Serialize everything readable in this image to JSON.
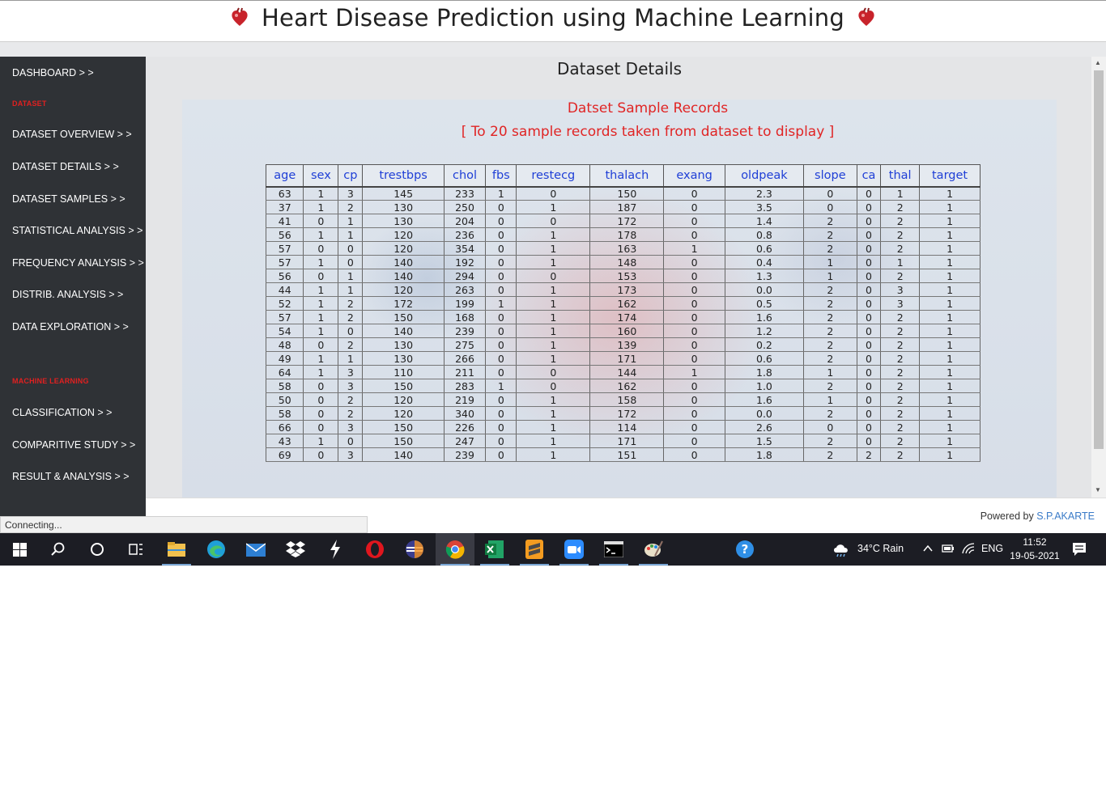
{
  "header": {
    "title": "Heart Disease Prediction using Machine Learning"
  },
  "sidebar": {
    "items": [
      {
        "label": "DASHBOARD > >"
      },
      {
        "label": "DATASET",
        "section": true
      },
      {
        "label": "DATASET OVERVIEW > >"
      },
      {
        "label": "DATASET DETAILS > >"
      },
      {
        "label": "DATASET SAMPLES > >"
      },
      {
        "label": "STATISTICAL ANALYSIS > >"
      },
      {
        "label": "FREQUENCY ANALYSIS > >"
      },
      {
        "label": "DISTRIB. ANALYSIS > >"
      },
      {
        "label": "DATA EXPLORATION > >"
      },
      {
        "label": "MACHINE LEARNING",
        "section": true
      },
      {
        "label": "CLASSIFICATION > >"
      },
      {
        "label": "COMPARITIVE STUDY > >"
      },
      {
        "label": "RESULT & ANALYSIS > >"
      }
    ]
  },
  "main": {
    "title": "Dataset Details",
    "panel_title": "Datset Sample Records",
    "panel_subtitle": "[ To 20 sample records taken from dataset to display ]",
    "table": {
      "columns": [
        "age",
        "sex",
        "cp",
        "trestbps",
        "chol",
        "fbs",
        "restecg",
        "thalach",
        "exang",
        "oldpeak",
        "slope",
        "ca",
        "thal",
        "target"
      ],
      "rows": [
        [
          "63",
          "1",
          "3",
          "145",
          "233",
          "1",
          "0",
          "150",
          "0",
          "2.3",
          "0",
          "0",
          "1",
          "1"
        ],
        [
          "37",
          "1",
          "2",
          "130",
          "250",
          "0",
          "1",
          "187",
          "0",
          "3.5",
          "0",
          "0",
          "2",
          "1"
        ],
        [
          "41",
          "0",
          "1",
          "130",
          "204",
          "0",
          "0",
          "172",
          "0",
          "1.4",
          "2",
          "0",
          "2",
          "1"
        ],
        [
          "56",
          "1",
          "1",
          "120",
          "236",
          "0",
          "1",
          "178",
          "0",
          "0.8",
          "2",
          "0",
          "2",
          "1"
        ],
        [
          "57",
          "0",
          "0",
          "120",
          "354",
          "0",
          "1",
          "163",
          "1",
          "0.6",
          "2",
          "0",
          "2",
          "1"
        ],
        [
          "57",
          "1",
          "0",
          "140",
          "192",
          "0",
          "1",
          "148",
          "0",
          "0.4",
          "1",
          "0",
          "1",
          "1"
        ],
        [
          "56",
          "0",
          "1",
          "140",
          "294",
          "0",
          "0",
          "153",
          "0",
          "1.3",
          "1",
          "0",
          "2",
          "1"
        ],
        [
          "44",
          "1",
          "1",
          "120",
          "263",
          "0",
          "1",
          "173",
          "0",
          "0.0",
          "2",
          "0",
          "3",
          "1"
        ],
        [
          "52",
          "1",
          "2",
          "172",
          "199",
          "1",
          "1",
          "162",
          "0",
          "0.5",
          "2",
          "0",
          "3",
          "1"
        ],
        [
          "57",
          "1",
          "2",
          "150",
          "168",
          "0",
          "1",
          "174",
          "0",
          "1.6",
          "2",
          "0",
          "2",
          "1"
        ],
        [
          "54",
          "1",
          "0",
          "140",
          "239",
          "0",
          "1",
          "160",
          "0",
          "1.2",
          "2",
          "0",
          "2",
          "1"
        ],
        [
          "48",
          "0",
          "2",
          "130",
          "275",
          "0",
          "1",
          "139",
          "0",
          "0.2",
          "2",
          "0",
          "2",
          "1"
        ],
        [
          "49",
          "1",
          "1",
          "130",
          "266",
          "0",
          "1",
          "171",
          "0",
          "0.6",
          "2",
          "0",
          "2",
          "1"
        ],
        [
          "64",
          "1",
          "3",
          "110",
          "211",
          "0",
          "0",
          "144",
          "1",
          "1.8",
          "1",
          "0",
          "2",
          "1"
        ],
        [
          "58",
          "0",
          "3",
          "150",
          "283",
          "1",
          "0",
          "162",
          "0",
          "1.0",
          "2",
          "0",
          "2",
          "1"
        ],
        [
          "50",
          "0",
          "2",
          "120",
          "219",
          "0",
          "1",
          "158",
          "0",
          "1.6",
          "1",
          "0",
          "2",
          "1"
        ],
        [
          "58",
          "0",
          "2",
          "120",
          "340",
          "0",
          "1",
          "172",
          "0",
          "0.0",
          "2",
          "0",
          "2",
          "1"
        ],
        [
          "66",
          "0",
          "3",
          "150",
          "226",
          "0",
          "1",
          "114",
          "0",
          "2.6",
          "0",
          "0",
          "2",
          "1"
        ],
        [
          "43",
          "1",
          "0",
          "150",
          "247",
          "0",
          "1",
          "171",
          "0",
          "1.5",
          "2",
          "0",
          "2",
          "1"
        ],
        [
          "69",
          "0",
          "3",
          "140",
          "239",
          "0",
          "1",
          "151",
          "0",
          "1.8",
          "2",
          "2",
          "2",
          "1"
        ]
      ]
    }
  },
  "footer": {
    "powered_prefix": "Powered by ",
    "author": "S.P.AKARTE"
  },
  "status": {
    "text": "Connecting..."
  },
  "taskbar": {
    "icons": [
      "windows-start-icon",
      "search-icon",
      "cortana-icon",
      "task-view-icon",
      "file-explorer-icon",
      "edge-icon",
      "mail-icon",
      "dropbox-icon",
      "lightning-app-icon",
      "opera-icon",
      "eclipse-icon",
      "chrome-icon",
      "excel-icon",
      "sublime-text-icon",
      "zoom-icon",
      "terminal-icon",
      "paint-icon",
      "help-icon"
    ],
    "weather": "34°C  Rain",
    "language": "ENG",
    "time": "11:52",
    "date": "19-05-2021"
  },
  "colors": {
    "accent_red": "#e02525",
    "header_blue": "#1f3fd6",
    "sidebar_bg": "#2f3236",
    "author_link": "#3a7bc8"
  }
}
